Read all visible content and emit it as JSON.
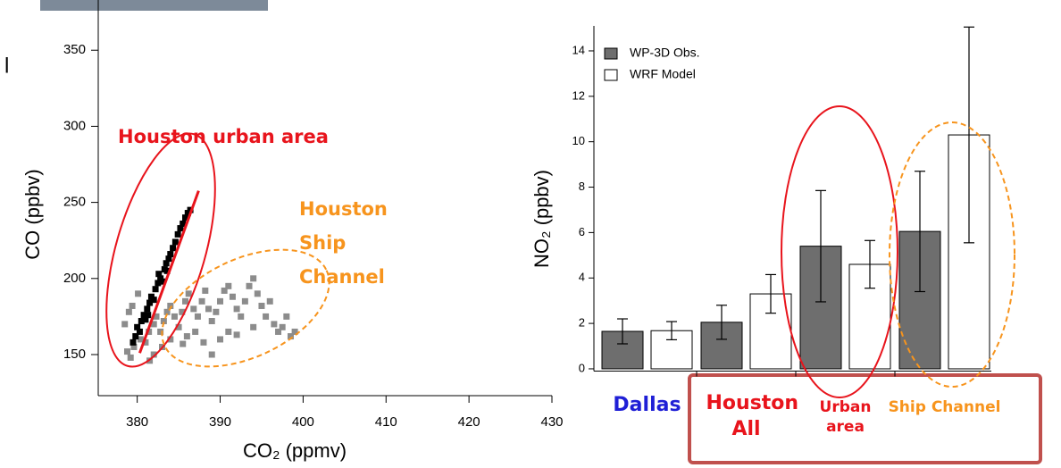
{
  "fragment": "l",
  "chart_data": [
    {
      "type": "scatter",
      "xlabel": "CO₂ (ppmv)",
      "ylabel": "CO (ppbv)",
      "xlim": [
        375.3,
        430
      ],
      "xticks": [
        380,
        390,
        400,
        410,
        420,
        430
      ],
      "ylim": [
        123,
        383
      ],
      "yticks": [
        150,
        200,
        250,
        300,
        350
      ],
      "annotations": [
        {
          "text": "Houston urban area",
          "color": "#e8141c"
        },
        {
          "text": "Houston Ship Channel",
          "color": "#f7941d"
        }
      ],
      "fit_line": {
        "x": [
          380.3,
          387.4
        ],
        "y": [
          151,
          257.6
        ],
        "color": "#e8141c"
      },
      "series": [
        {
          "color": "#8c8c8c",
          "x": [
            378.8,
            379.2,
            379.6,
            378.5,
            379.0,
            379.4,
            380.1,
            380.4,
            381.0,
            381.4,
            382.0,
            382.3,
            382.8,
            383.2,
            383.6,
            384.0,
            384.5,
            385.0,
            385.4,
            385.8,
            386.2,
            386.8,
            387.3,
            387.8,
            388.2,
            388.6,
            389.0,
            389.5,
            390.0,
            390.5,
            391.0,
            391.5,
            392.0,
            392.5,
            393.0,
            393.5,
            394.0,
            394.5,
            395.0,
            395.5,
            396.0,
            396.5,
            397.0,
            398.0,
            398.5,
            399.0,
            392.0,
            390.0,
            388.0,
            386.0,
            384.0,
            382.0,
            381.5,
            383.0,
            385.5,
            389.0,
            391.0,
            394.0,
            397.5,
            387.0
          ],
          "y": [
            152,
            148,
            155,
            170,
            178,
            182,
            190,
            160,
            158,
            165,
            170,
            175,
            165,
            172,
            178,
            182,
            175,
            168,
            178,
            185,
            190,
            180,
            175,
            185,
            192,
            180,
            172,
            178,
            185,
            192,
            195,
            188,
            180,
            175,
            185,
            195,
            200,
            190,
            182,
            175,
            185,
            170,
            165,
            175,
            162,
            165,
            163,
            160,
            158,
            162,
            160,
            150,
            146,
            155,
            157,
            150,
            165,
            168,
            168,
            165
          ]
        },
        {
          "color": "#000000",
          "x": [
            379.5,
            379.8,
            380.0,
            380.3,
            380.5,
            380.8,
            381.0,
            381.2,
            381.5,
            381.7,
            382.0,
            382.2,
            382.5,
            382.8,
            383.0,
            383.3,
            383.5,
            383.8,
            384.0,
            384.3,
            384.6,
            384.9,
            385.2,
            385.5,
            385.8,
            386.1,
            386.4,
            383.6,
            382.6,
            381.3
          ],
          "y": [
            158,
            162,
            168,
            165,
            172,
            176,
            173,
            180,
            184,
            188,
            186,
            193,
            197,
            200,
            198,
            206,
            210,
            213,
            216,
            220,
            224,
            229,
            233,
            236,
            240,
            243,
            245,
            205,
            203,
            176
          ]
        }
      ]
    },
    {
      "type": "bar",
      "ylabel": "NO₂ (ppbv)",
      "ylim": [
        -0.1,
        15.1
      ],
      "yticks": [
        0,
        2,
        4,
        6,
        8,
        10,
        12,
        14
      ],
      "categories": [
        "Dallas",
        "Houston All",
        "Urban area",
        "Ship Channel"
      ],
      "category_colors": [
        "#1f1fd6",
        "#e8141c",
        "#e8141c",
        "#f7941d"
      ],
      "legend": "upper left",
      "series": [
        {
          "name": "WP-3D Obs.",
          "color": "#6e6e6e",
          "values": [
            1.65,
            2.05,
            5.4,
            6.05
          ],
          "errors": [
            0.55,
            0.75,
            2.45,
            2.65
          ]
        },
        {
          "name": "WRF Model",
          "color": "#ffffff",
          "values": [
            1.68,
            3.3,
            4.6,
            10.3
          ],
          "errors": [
            0.4,
            0.85,
            1.05,
            4.75
          ]
        }
      ]
    }
  ]
}
